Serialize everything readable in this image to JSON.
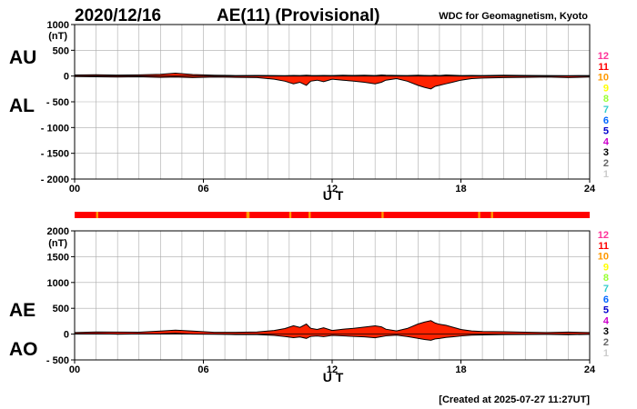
{
  "header": {
    "date": "2020/12/16",
    "title": "AE(11) (Provisional)",
    "source": "WDC for Geomagnetism, Kyoto"
  },
  "footer": {
    "created": "[Created at 2025-07-27 11:27UT]"
  },
  "station_count_labels": [
    "12",
    "11",
    "10",
    "9",
    "8",
    "7",
    "6",
    "5",
    "4",
    "3",
    "2",
    "1"
  ],
  "station_count_colors": [
    "#ff3399",
    "#ff0000",
    "#ff9900",
    "#ffff00",
    "#99ff33",
    "#33cccc",
    "#0066ff",
    "#0000cc",
    "#cc00cc",
    "#000000",
    "#666666",
    "#cccccc"
  ],
  "colors": {
    "fill": "#ff2200",
    "line": "#000000",
    "grid": "#aaaaaa"
  },
  "chart_data": [
    {
      "type": "area",
      "panel": "AU/AL",
      "labels": [
        "AU",
        "AL"
      ],
      "unit_label": "(nT)",
      "xlabel": "U T",
      "xlim": [
        0,
        24
      ],
      "x_ticks": [
        "00",
        "06",
        "12",
        "18",
        "24"
      ],
      "ylim": [
        -2000,
        1000
      ],
      "y_ticks": [
        "1000",
        "500",
        "0",
        "- 500",
        "- 1000",
        "- 1500",
        "- 2000"
      ],
      "grid": true,
      "x": [
        0,
        1,
        2,
        3,
        4,
        4.7,
        5.5,
        6.5,
        7.5,
        8.5,
        9.3,
        9.8,
        10.2,
        10.5,
        10.8,
        11,
        11.3,
        11.6,
        12,
        12.5,
        13,
        13.5,
        14,
        14.3,
        14.5,
        15,
        15.5,
        16,
        16.3,
        16.6,
        16.8,
        17,
        17.3,
        17.6,
        18,
        18.5,
        19,
        20,
        21,
        22,
        23,
        24
      ],
      "series": [
        {
          "values": [
            20,
            25,
            18,
            22,
            35,
            55,
            30,
            15,
            10,
            12,
            10,
            8,
            12,
            10,
            15,
            12,
            10,
            12,
            10,
            15,
            12,
            15,
            10,
            20,
            15,
            12,
            10,
            15,
            12,
            10,
            15,
            10,
            20,
            15,
            10,
            12,
            10,
            15,
            12,
            10,
            8,
            10
          ]
        },
        {
          "values": [
            -10,
            -15,
            -20,
            -15,
            -25,
            -20,
            -30,
            -20,
            -25,
            -30,
            -60,
            -100,
            -150,
            -120,
            -180,
            -100,
            -80,
            -110,
            -60,
            -80,
            -100,
            -120,
            -150,
            -120,
            -80,
            -50,
            -100,
            -180,
            -220,
            -250,
            -200,
            -180,
            -150,
            -120,
            -80,
            -50,
            -40,
            -30,
            -25,
            -20,
            -30,
            -20
          ]
        }
      ]
    },
    {
      "type": "area",
      "panel": "AE/AO",
      "labels": [
        "AE",
        "AO"
      ],
      "unit_label": "(nT)",
      "xlabel": "U T",
      "xlim": [
        0,
        24
      ],
      "x_ticks": [
        "00",
        "06",
        "12",
        "18",
        "24"
      ],
      "ylim": [
        -500,
        2000
      ],
      "y_ticks": [
        "2000",
        "1500",
        "1000",
        "500",
        "0",
        "- 500"
      ],
      "grid": true,
      "x": [
        0,
        1,
        2,
        3,
        4,
        4.7,
        5.5,
        6.5,
        7.5,
        8.5,
        9.3,
        9.8,
        10.2,
        10.5,
        10.8,
        11,
        11.3,
        11.6,
        12,
        12.5,
        13,
        13.5,
        14,
        14.3,
        14.5,
        15,
        15.5,
        16,
        16.3,
        16.6,
        16.8,
        17,
        17.3,
        17.6,
        18,
        18.5,
        19,
        20,
        21,
        22,
        23,
        24
      ],
      "series": [
        {
          "values": [
            30,
            40,
            38,
            37,
            60,
            75,
            60,
            35,
            35,
            42,
            70,
            108,
            162,
            130,
            195,
            112,
            90,
            122,
            70,
            95,
            112,
            135,
            160,
            140,
            95,
            62,
            110,
            195,
            232,
            260,
            215,
            190,
            170,
            135,
            90,
            62,
            50,
            45,
            37,
            30,
            38,
            30
          ]
        },
        {
          "values": [
            5,
            5,
            -1,
            4,
            5,
            18,
            0,
            -3,
            -8,
            -9,
            -25,
            -46,
            -69,
            -55,
            -83,
            -44,
            -35,
            -49,
            -25,
            -33,
            -44,
            -53,
            -70,
            -50,
            -33,
            -19,
            -45,
            -83,
            -104,
            -120,
            -93,
            -85,
            -65,
            -53,
            -35,
            -19,
            -15,
            -8,
            -7,
            -5,
            -11,
            -5
          ]
        }
      ]
    }
  ],
  "coverage_bar": {
    "base_station_count": "11",
    "segments": [
      {
        "from": 1.0,
        "to": 1.1,
        "station_count": "10"
      },
      {
        "from": 8.0,
        "to": 8.15,
        "station_count": "10"
      },
      {
        "from": 10.0,
        "to": 10.1,
        "station_count": "10"
      },
      {
        "from": 10.9,
        "to": 11.0,
        "station_count": "10"
      },
      {
        "from": 14.3,
        "to": 14.4,
        "station_count": "10"
      },
      {
        "from": 18.8,
        "to": 18.9,
        "station_count": "10"
      },
      {
        "from": 19.4,
        "to": 19.5,
        "station_count": "10"
      }
    ]
  }
}
